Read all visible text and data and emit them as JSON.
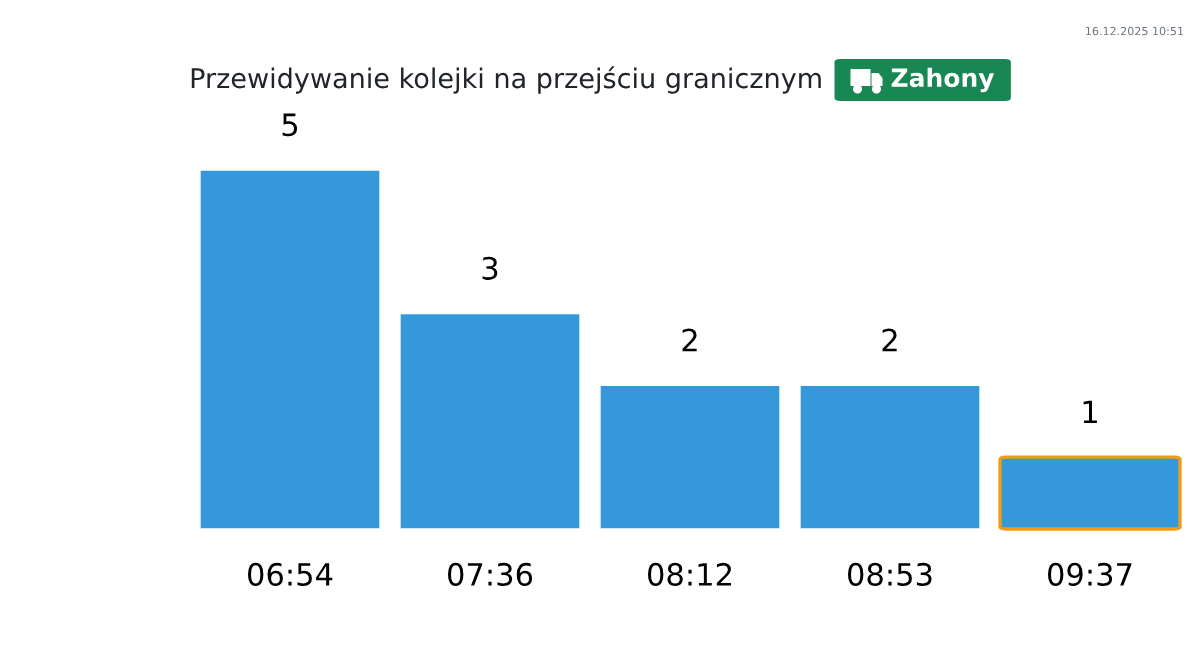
{
  "chart_data": {
    "type": "bar",
    "title": "Przewidywanie kolejki na przejściu granicznym",
    "subtitle": "Zahony",
    "categories": [
      "06:54",
      "07:36",
      "08:12",
      "08:53",
      "09:37"
    ],
    "values": [
      5,
      3,
      2,
      2,
      1
    ],
    "color": "#3498db",
    "data_labels": true,
    "tick_labels": "x",
    "annotations": [
      "16.12.2025 10:51"
    ]
  }
}
